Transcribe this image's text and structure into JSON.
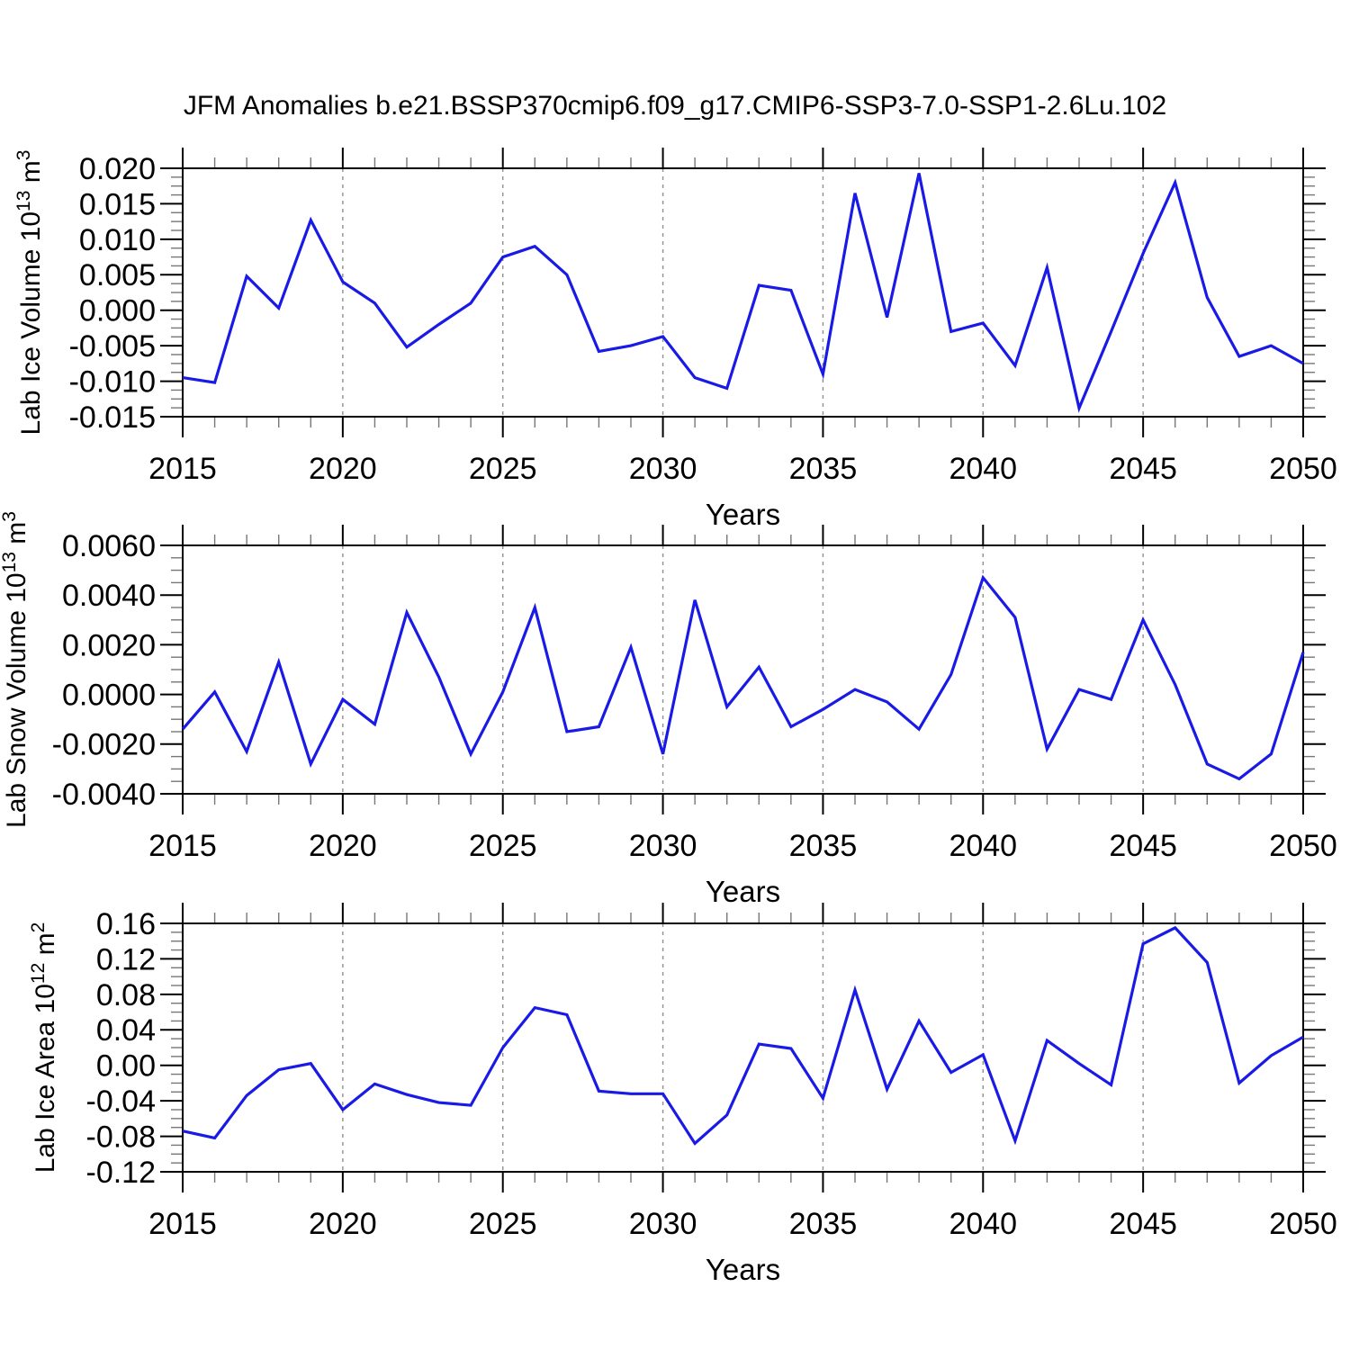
{
  "title": "JFM Anomalies b.e21.BSSP370cmip6.f09_g17.CMIP6-SSP3-7.0-SSP1-2.6Lu.102",
  "colors": {
    "series_line": "#1a1ae6",
    "axis": "#000000",
    "minor_tick": "#777777",
    "gridline": "#909090",
    "text": "#000000",
    "background": "#ffffff"
  },
  "chart_data": [
    {
      "type": "line",
      "title": "",
      "ylabel": "Lab Ice Volume 10^13 m^3",
      "ylabel_parts": [
        [
          "Lab Ice Volume 10",
          0
        ],
        [
          "13",
          1
        ],
        [
          " m",
          0
        ],
        [
          "3",
          1
        ]
      ],
      "xlabel": "Years",
      "xlim": [
        2015,
        2050
      ],
      "ylim": [
        -0.015,
        0.02
      ],
      "ytick_step": 0.005,
      "y_minor_per_major": 3,
      "x_minor_step": 1,
      "grid": "vertical-dashed",
      "legend": null,
      "xticks": [
        2015,
        2020,
        2025,
        2030,
        2035,
        2040,
        2045,
        2050
      ],
      "xtick_labels": [
        "2015",
        "2020",
        "2025",
        "2030",
        "2035",
        "2040",
        "2045",
        "2050"
      ],
      "ytick_labels": [
        "0.020",
        "0.015",
        "0.010",
        "0.005",
        "0.000",
        "-0.005",
        "-0.010",
        "-0.015"
      ],
      "x": [
        2015,
        2016,
        2017,
        2018,
        2019,
        2020,
        2021,
        2022,
        2023,
        2024,
        2025,
        2026,
        2027,
        2028,
        2029,
        2030,
        2031,
        2032,
        2033,
        2034,
        2035,
        2036,
        2037,
        2038,
        2039,
        2040,
        2041,
        2042,
        2043,
        2044,
        2045,
        2046,
        2047,
        2048,
        2049,
        2050
      ],
      "values": [
        -0.0095,
        -0.0102,
        0.0048,
        0.0003,
        0.0127,
        0.004,
        0.001,
        -0.0052,
        -0.002,
        0.001,
        0.0075,
        0.009,
        0.005,
        -0.0058,
        -0.005,
        -0.0037,
        -0.0095,
        -0.011,
        0.0035,
        0.0028,
        -0.009,
        0.0165,
        -0.001,
        0.0193,
        -0.003,
        -0.0018,
        -0.0078,
        0.006,
        -0.0138,
        -0.003,
        0.008,
        0.018,
        0.0018,
        -0.0065,
        -0.005,
        -0.0075
      ]
    },
    {
      "type": "line",
      "title": "",
      "ylabel": "Lab Snow Volume 10^13 m^3",
      "ylabel_parts": [
        [
          "Lab Snow Volume 10",
          0
        ],
        [
          "13",
          1
        ],
        [
          " m",
          0
        ],
        [
          "3",
          1
        ]
      ],
      "xlabel": "Years",
      "xlim": [
        2015,
        2050
      ],
      "ylim": [
        -0.004,
        0.006
      ],
      "ytick_step": 0.002,
      "y_minor_per_major": 3,
      "x_minor_step": 1,
      "grid": "vertical-dashed",
      "legend": null,
      "xticks": [
        2015,
        2020,
        2025,
        2030,
        2035,
        2040,
        2045,
        2050
      ],
      "xtick_labels": [
        "2015",
        "2020",
        "2025",
        "2030",
        "2035",
        "2040",
        "2045",
        "2050"
      ],
      "ytick_labels": [
        "0.0060",
        "0.0040",
        "0.0020",
        "0.0000",
        "-0.0020",
        "-0.0040"
      ],
      "x": [
        2015,
        2016,
        2017,
        2018,
        2019,
        2020,
        2021,
        2022,
        2023,
        2024,
        2025,
        2026,
        2027,
        2028,
        2029,
        2030,
        2031,
        2032,
        2033,
        2034,
        2035,
        2036,
        2037,
        2038,
        2039,
        2040,
        2041,
        2042,
        2043,
        2044,
        2045,
        2046,
        2047,
        2048,
        2049,
        2050
      ],
      "values": [
        -0.0014,
        0.0001,
        -0.0023,
        0.0013,
        -0.0028,
        -0.0002,
        -0.0012,
        0.0033,
        0.0007,
        -0.0024,
        0.0001,
        0.0035,
        -0.0015,
        -0.0013,
        0.0019,
        -0.0024,
        0.0038,
        -0.0005,
        0.0011,
        -0.0013,
        -0.0006,
        0.0002,
        -0.0003,
        -0.0014,
        0.0008,
        0.0047,
        0.0031,
        -0.0022,
        0.0002,
        -0.0002,
        0.003,
        0.0004,
        -0.0028,
        -0.0034,
        -0.0024,
        0.0017
      ]
    },
    {
      "type": "line",
      "title": "",
      "ylabel": "Lab Ice Area 10^12 m^2",
      "ylabel_parts": [
        [
          "Lab Ice Area 10",
          0
        ],
        [
          "12",
          1
        ],
        [
          " m",
          0
        ],
        [
          "2",
          1
        ]
      ],
      "xlabel": "Years",
      "xlim": [
        2015,
        2050
      ],
      "ylim": [
        -0.12,
        0.16
      ],
      "ytick_step": 0.04,
      "y_minor_per_major": 3,
      "x_minor_step": 1,
      "grid": "vertical-dashed",
      "legend": null,
      "xticks": [
        2015,
        2020,
        2025,
        2030,
        2035,
        2040,
        2045,
        2050
      ],
      "xtick_labels": [
        "2015",
        "2020",
        "2025",
        "2030",
        "2035",
        "2040",
        "2045",
        "2050"
      ],
      "ytick_labels": [
        "0.16",
        "0.12",
        "0.08",
        "0.04",
        "0.00",
        "-0.04",
        "-0.08",
        "-0.12"
      ],
      "x": [
        2015,
        2016,
        2017,
        2018,
        2019,
        2020,
        2021,
        2022,
        2023,
        2024,
        2025,
        2026,
        2027,
        2028,
        2029,
        2030,
        2031,
        2032,
        2033,
        2034,
        2035,
        2036,
        2037,
        2038,
        2039,
        2040,
        2041,
        2042,
        2043,
        2044,
        2045,
        2046,
        2047,
        2048,
        2049,
        2050
      ],
      "values": [
        -0.074,
        -0.082,
        -0.034,
        -0.005,
        0.002,
        -0.05,
        -0.021,
        -0.033,
        -0.042,
        -0.045,
        0.02,
        0.065,
        0.057,
        -0.029,
        -0.032,
        -0.032,
        -0.088,
        -0.056,
        0.024,
        0.019,
        -0.037,
        0.085,
        -0.027,
        0.05,
        -0.008,
        0.012,
        -0.085,
        0.028,
        0.002,
        -0.022,
        0.137,
        0.155,
        0.116,
        -0.02,
        0.011,
        0.032
      ]
    }
  ]
}
